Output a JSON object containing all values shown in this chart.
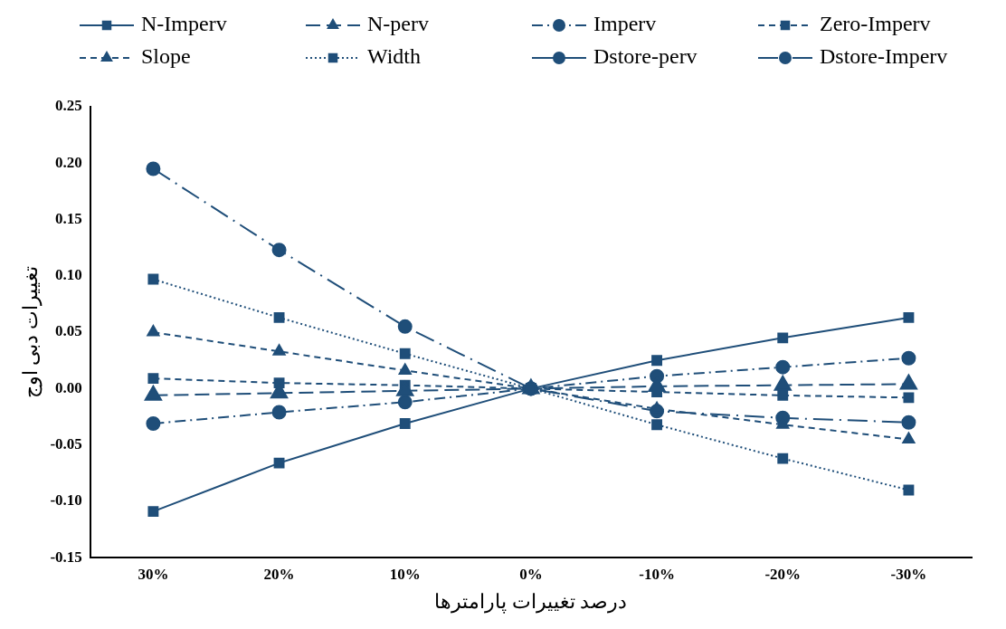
{
  "chart_data": {
    "type": "line",
    "xlabel": "درصد تغییرات پارامترها",
    "ylabel": "تغییرات دبی اوج",
    "categories": [
      "30%",
      "20%",
      "10%",
      "0%",
      "-10%",
      "-20%",
      "-30%"
    ],
    "ylim": [
      -0.15,
      0.25
    ],
    "yticks": [
      {
        "value": -0.15,
        "label": "-0.15"
      },
      {
        "value": -0.1,
        "label": "-0.10"
      },
      {
        "value": -0.05,
        "label": "-0.05"
      },
      {
        "value": 0,
        "label": "0.00"
      },
      {
        "value": 0.05,
        "label": "0.05"
      },
      {
        "value": 0.1,
        "label": "0.10"
      },
      {
        "value": 0.15,
        "label": "0.15"
      },
      {
        "value": 0.2,
        "label": "0.20"
      },
      {
        "value": 0.25,
        "label": "0.25"
      }
    ],
    "grid": false,
    "legend": "top",
    "series": [
      {
        "name": "N-Imperv",
        "color": "#1f4e79",
        "marker": "square",
        "line_style": "solid",
        "values": [
          -0.109,
          -0.066,
          -0.031,
          0,
          0.025,
          0.045,
          0.063
        ]
      },
      {
        "name": "N-perv",
        "color": "#1f4e79",
        "marker": "triangle",
        "line_style": "longdash",
        "values": [
          -0.006,
          -0.004,
          -0.002,
          0,
          0.002,
          0.003,
          0.004
        ]
      },
      {
        "name": "Imperv",
        "color": "#1f4e79",
        "marker": "circle",
        "line_style": "dashdot",
        "values": [
          -0.031,
          -0.021,
          -0.012,
          0,
          0.011,
          0.019,
          0.027
        ]
      },
      {
        "name": "Zero-Imperv",
        "color": "#1f4e79",
        "marker": "square",
        "line_style": "dashed",
        "values": [
          0.009,
          0.005,
          0.003,
          0,
          -0.003,
          -0.006,
          -0.008
        ]
      },
      {
        "name": "Slope",
        "color": "#1f4e79",
        "marker": "triangle",
        "line_style": "dashed",
        "values": [
          0.05,
          0.033,
          0.016,
          0,
          -0.018,
          -0.032,
          -0.045
        ]
      },
      {
        "name": "Width",
        "color": "#1f4e79",
        "marker": "square",
        "line_style": "dotted",
        "values": [
          0.097,
          0.063,
          0.031,
          0,
          -0.032,
          -0.062,
          -0.09
        ]
      },
      {
        "name": "Dstore-perv",
        "color": "#1f4e79",
        "marker": "circle",
        "line_style": "solid",
        "values": [
          null,
          null,
          null,
          null,
          null,
          null,
          null
        ]
      },
      {
        "name": "Dstore-Imperv",
        "color": "#1f4e79",
        "marker": "circle",
        "line_style": "longdashdot",
        "values": [
          0.195,
          0.123,
          0.055,
          0,
          -0.02,
          -0.026,
          -0.03
        ]
      }
    ]
  }
}
